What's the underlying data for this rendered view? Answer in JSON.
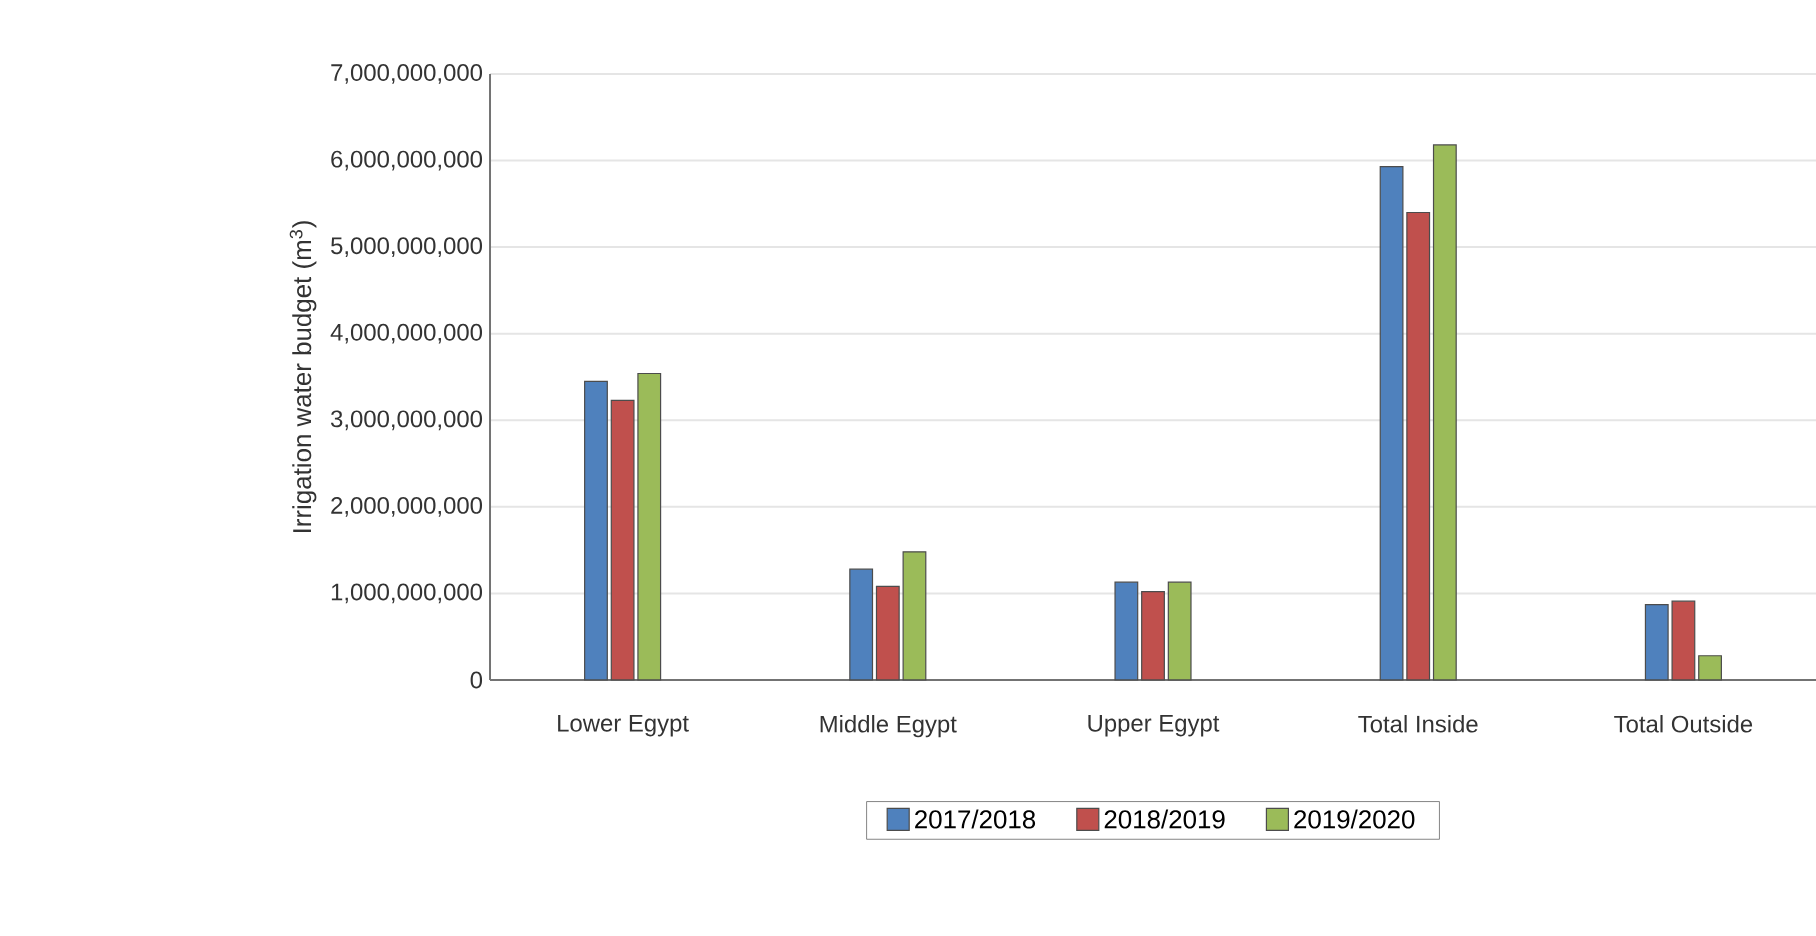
{
  "chart_data": {
    "type": "bar",
    "ylabel": "Irrigation water budget (m$^{3}$)",
    "categories": [
      "Lower Egypt",
      "Middle Egypt",
      "Upper Egypt",
      "Total Inside",
      "Total Outside"
    ],
    "series": [
      {
        "name": "2017/2018",
        "color": "#4f81bd",
        "values": [
          3450000000,
          1280000000,
          1130000000,
          5930000000,
          870000000
        ]
      },
      {
        "name": "2018/2019",
        "color": "#c0504d",
        "values": [
          3230000000,
          1080000000,
          1020000000,
          5400000000,
          910000000
        ]
      },
      {
        "name": "2019/2020",
        "color": "#9bbb59",
        "values": [
          3540000000,
          1480000000,
          1130000000,
          6180000000,
          280000000
        ]
      }
    ],
    "ylim": [
      0,
      7000000000
    ],
    "yticks": [
      0,
      {
        "value": 1000000000,
        "label": "1,000,000,000"
      },
      {
        "value": 2000000000,
        "label": "2,000,000,000"
      },
      {
        "value": 3000000000,
        "label": "3,000,000,000"
      },
      {
        "value": 4000000000,
        "label": "4,000,000,000"
      },
      {
        "value": 5000000000,
        "label": "5,000,000,000"
      },
      {
        "value": 6000000000,
        "label": "6,000,000,000"
      },
      {
        "value": 7000000000,
        "label": "7,000,000,000"
      }
    ],
    "grid": "y",
    "legend": "bottom"
  }
}
